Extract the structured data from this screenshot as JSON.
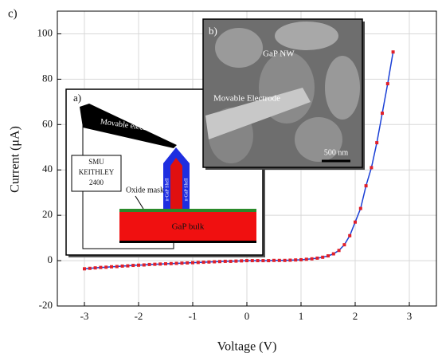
{
  "chart_data": {
    "type": "line",
    "panel_label": "c)",
    "xlabel": "Voltage (V)",
    "ylabel": "Current (μA)",
    "x": [
      -3.0,
      -2.9,
      -2.8,
      -2.7,
      -2.6,
      -2.5,
      -2.4,
      -2.3,
      -2.2,
      -2.1,
      -2.0,
      -1.9,
      -1.8,
      -1.7,
      -1.6,
      -1.5,
      -1.4,
      -1.3,
      -1.2,
      -1.1,
      -1.0,
      -0.9,
      -0.8,
      -0.7,
      -0.6,
      -0.5,
      -0.4,
      -0.3,
      -0.2,
      -0.1,
      0,
      0.1,
      0.2,
      0.3,
      0.4,
      0.5,
      0.6,
      0.7,
      0.8,
      0.9,
      1.0,
      1.1,
      1.2,
      1.3,
      1.4,
      1.5,
      1.6,
      1.7,
      1.8,
      1.9,
      2.0,
      2.1,
      2.2,
      2.3,
      2.4,
      2.5,
      2.6,
      2.7
    ],
    "values": [
      -3.6,
      -3.4,
      -3.2,
      -3.0,
      -2.9,
      -2.7,
      -2.6,
      -2.4,
      -2.3,
      -2.1,
      -2.0,
      -1.9,
      -1.7,
      -1.6,
      -1.5,
      -1.4,
      -1.3,
      -1.2,
      -1.1,
      -1.0,
      -0.9,
      -0.8,
      -0.7,
      -0.6,
      -0.5,
      -0.4,
      -0.3,
      -0.3,
      -0.2,
      -0.1,
      0,
      0,
      0,
      0,
      0,
      0.1,
      0.1,
      0.1,
      0.2,
      0.3,
      0.4,
      0.6,
      0.8,
      1.1,
      1.5,
      2.1,
      3.0,
      4.5,
      7,
      11,
      17,
      23,
      33,
      41,
      52,
      65,
      78,
      92
    ],
    "color": "#1a3fd6",
    "marker_color": "#e0202a",
    "xlim": [
      -3.5,
      3.5
    ],
    "xticks": [
      -3,
      -2,
      -1,
      0,
      1,
      2,
      3
    ],
    "ylim": [
      -20,
      110
    ],
    "yticks": [
      -20,
      0,
      20,
      40,
      60,
      80,
      100
    ],
    "grid": true,
    "inset_a": {
      "panel_label": "a)",
      "electrode": "Movable electrode",
      "instrument": [
        "SMU",
        "KEITHLEY",
        "2400"
      ],
      "oxide": "Oxide mask",
      "bulk": "GaP bulk",
      "shell": "n-GaP Shell"
    },
    "inset_b": {
      "panel_label": "b)",
      "nanowire": "GaP NW",
      "electrode": "Movable Electrode",
      "scale_bar": "500 nm"
    }
  }
}
